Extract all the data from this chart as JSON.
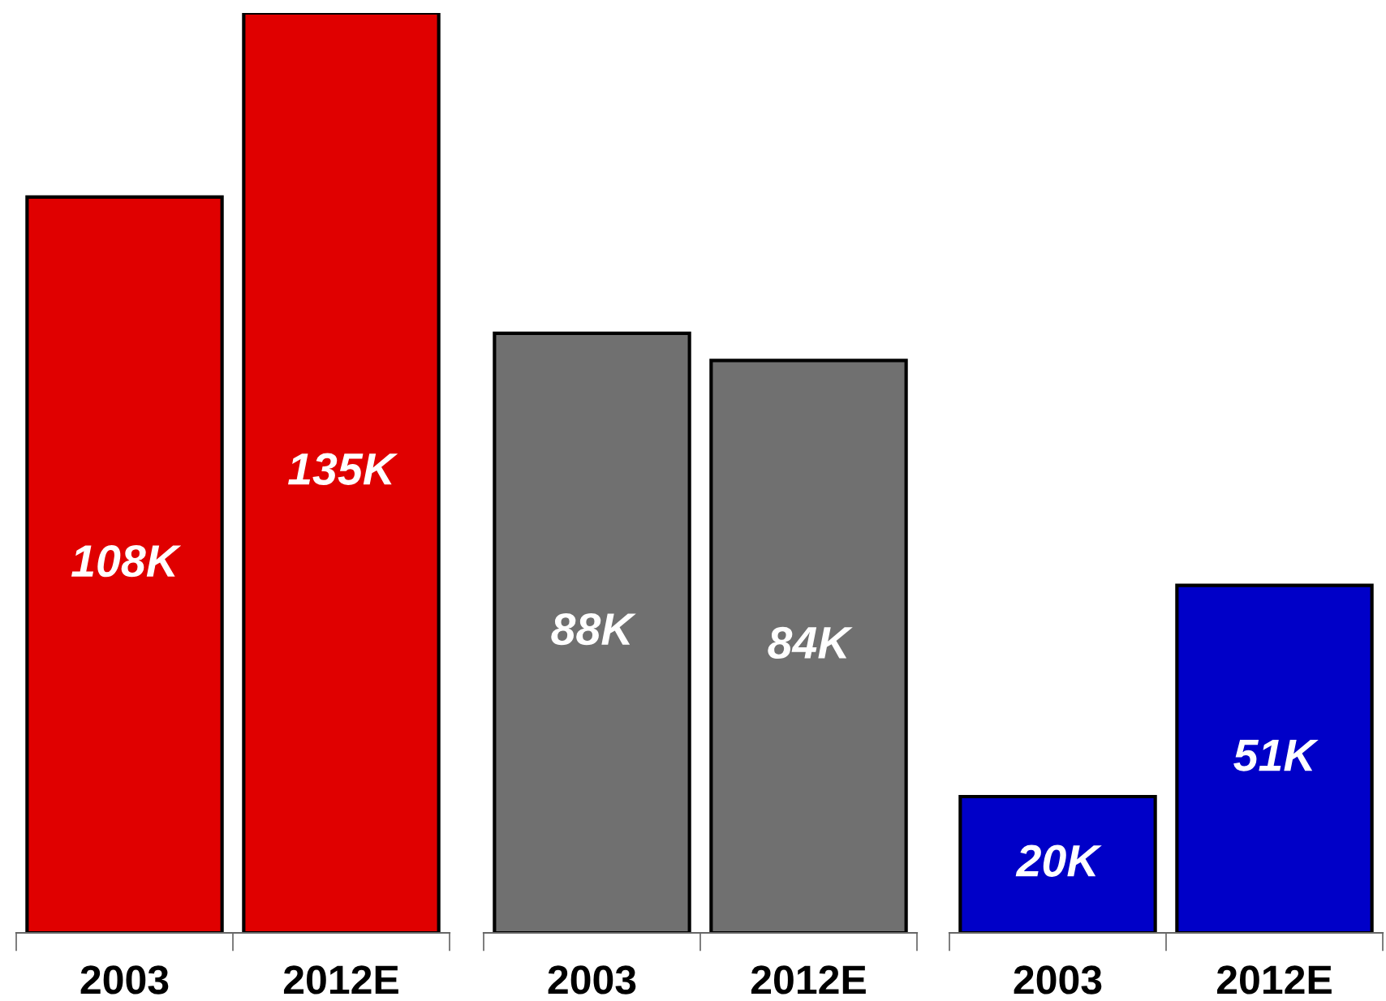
{
  "chart_data": [
    {
      "type": "bar",
      "categories": [
        "2003",
        "2012E"
      ],
      "values": [
        108,
        135
      ],
      "colors": [
        "#e00000",
        "#e00000"
      ],
      "value_labels": [
        "108K",
        "135K"
      ]
    },
    {
      "type": "bar",
      "categories": [
        "2003",
        "2012E"
      ],
      "values": [
        88,
        84
      ],
      "colors": [
        "#707070",
        "#707070"
      ],
      "value_labels": [
        "88K",
        "84K"
      ]
    },
    {
      "type": "bar",
      "categories": [
        "2003",
        "2012E"
      ],
      "values": [
        20,
        51
      ],
      "colors": [
        "#0000c8",
        "#0000c8"
      ],
      "value_labels": [
        "20K",
        "51K"
      ]
    }
  ]
}
